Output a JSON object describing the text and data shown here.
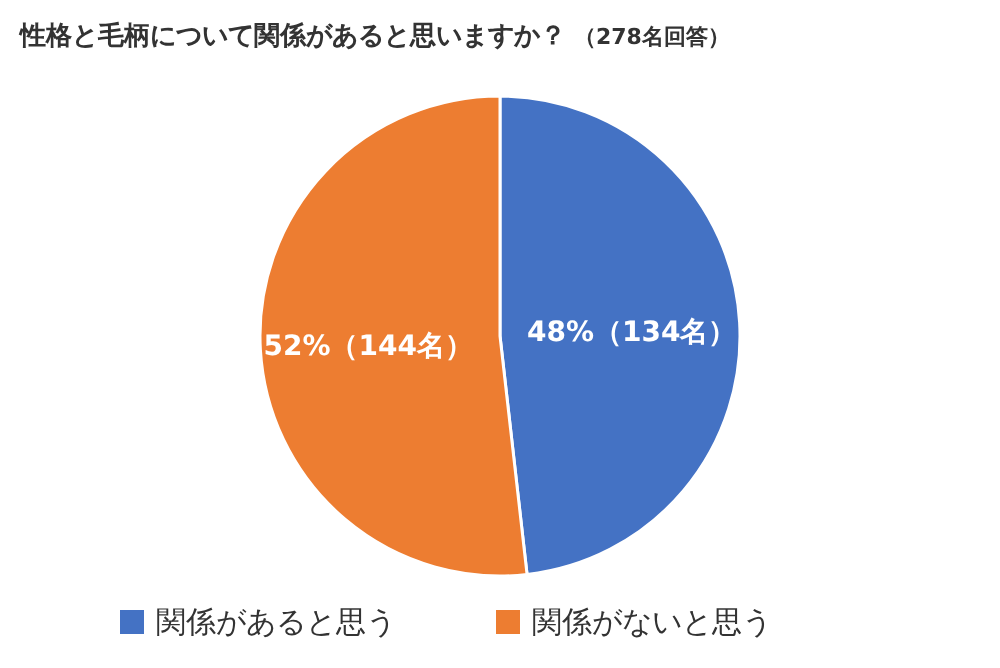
{
  "chart_data": {
    "type": "pie",
    "title": "性格と毛柄について関係があると思いますか？",
    "subtitle": "（278名回答）",
    "categories": [
      "関係があると思う",
      "関係がないと思う"
    ],
    "values": [
      134,
      144
    ],
    "colors": [
      "#4472c4",
      "#ed7d31"
    ],
    "value_labels": [
      "48%（134名）",
      "52%（144名）"
    ],
    "legend": "bottom"
  }
}
